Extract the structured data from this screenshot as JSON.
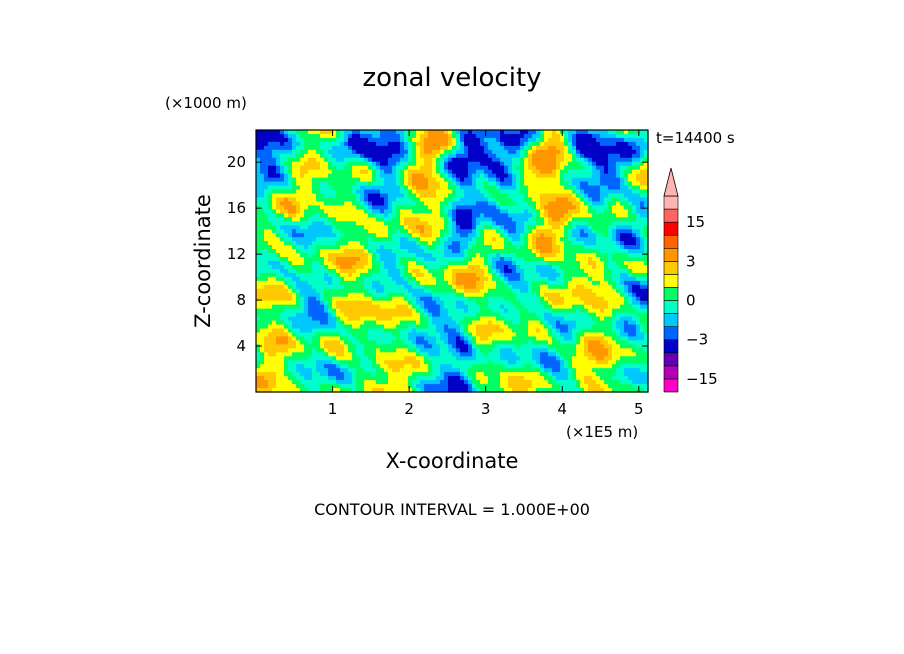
{
  "chart_data": {
    "type": "heatmap",
    "title": "zonal velocity",
    "xlabel": "X-coordinate",
    "ylabel": "Z-coordinate",
    "x_unit": "(×1E5 m)",
    "y_unit": "(×1000 m)",
    "time_label": "t=14400 s",
    "footer": "CONTOUR INTERVAL = 1.000E+00",
    "xlim": [
      0,
      5.12
    ],
    "ylim": [
      0,
      22.8
    ],
    "xticks": [
      1,
      2,
      3,
      4,
      5
    ],
    "yticks": [
      4,
      8,
      12,
      16,
      20
    ],
    "colorbar": {
      "tick_labels": [
        "15",
        "3",
        "0",
        "-3",
        "-15"
      ],
      "tick_values": [
        15,
        3,
        0,
        -3,
        -15
      ],
      "levels": [
        -20,
        -15,
        -10,
        -6,
        -3,
        -2,
        -1,
        0,
        1,
        2,
        3,
        6,
        10,
        15,
        20
      ],
      "colors": [
        "#ff00c8",
        "#b400b4",
        "#6400b4",
        "#0000c8",
        "#0064ff",
        "#00c8ff",
        "#00ffc8",
        "#00ff64",
        "#ffff00",
        "#ffc800",
        "#ff9600",
        "#ff6400",
        "#ff0000",
        "#ff6464",
        "#ffb4b4"
      ],
      "extend_top": true
    }
  }
}
